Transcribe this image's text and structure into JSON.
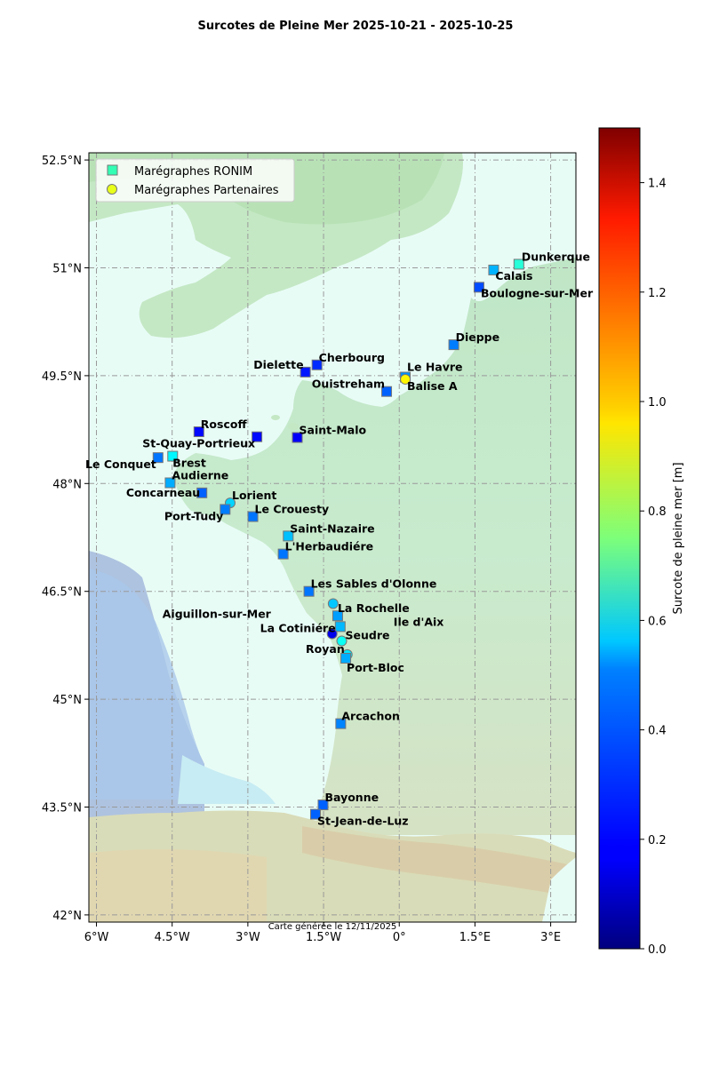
{
  "title": "Surcotes de Pleine Mer 2025-10-21 - 2025-10-25",
  "footer": "Carte générée le 12/11/2025",
  "legend": {
    "ronim_label": "Marégraphes RONIM",
    "partner_label": "Marégraphes Partenaires"
  },
  "map": {
    "lon_range": [
      -6.15,
      3.5
    ],
    "lat_range": [
      41.9,
      52.6
    ],
    "lon_ticks": [
      {
        "value": -6,
        "label": "6°W"
      },
      {
        "value": -4.5,
        "label": "4.5°W"
      },
      {
        "value": -3,
        "label": "3°W"
      },
      {
        "value": -1.5,
        "label": "1.5°W"
      },
      {
        "value": 0,
        "label": "0°"
      },
      {
        "value": 1.5,
        "label": "1.5°E"
      },
      {
        "value": 3,
        "label": "3°E"
      }
    ],
    "lat_ticks": [
      {
        "value": 52.5,
        "label": "52.5°N"
      },
      {
        "value": 51,
        "label": "51°N"
      },
      {
        "value": 49.5,
        "label": "49.5°N"
      },
      {
        "value": 48,
        "label": "48°N"
      },
      {
        "value": 46.5,
        "label": "46.5°N"
      },
      {
        "value": 45,
        "label": "45°N"
      },
      {
        "value": 43.5,
        "label": "43.5°N"
      },
      {
        "value": 42,
        "label": "42°N"
      }
    ],
    "grid": true
  },
  "colorbar": {
    "label": "Surcote de pleine mer [m]",
    "min": 0.0,
    "max": 1.5,
    "colormap": "jet",
    "ticks": [
      "0.0",
      "0.2",
      "0.4",
      "0.6",
      "0.8",
      "1.0",
      "1.2",
      "1.4"
    ]
  },
  "stations": [
    {
      "name": "Dunkerque",
      "lon": 2.37,
      "lat": 51.05,
      "type": "ronim",
      "surge": 0.62,
      "anchor": "start",
      "dx": 3,
      "dy": -4
    },
    {
      "name": "Calais",
      "lon": 1.87,
      "lat": 50.97,
      "type": "ronim",
      "surge": 0.45,
      "anchor": "start",
      "dx": 2,
      "dy": 11
    },
    {
      "name": "Boulogne-sur-Mer",
      "lon": 1.58,
      "lat": 50.73,
      "type": "ronim",
      "surge": 0.3,
      "anchor": "start",
      "dx": 2,
      "dy": 11
    },
    {
      "name": "Dieppe",
      "lon": 1.08,
      "lat": 49.93,
      "type": "ronim",
      "surge": 0.37,
      "anchor": "start",
      "dx": 2,
      "dy": -4
    },
    {
      "name": "Le Havre",
      "lon": 0.12,
      "lat": 49.48,
      "type": "ronim",
      "surge": 0.4,
      "anchor": "start",
      "dx": 2,
      "dy": -7
    },
    {
      "name": "Balise A",
      "lon": 0.12,
      "lat": 49.45,
      "type": "partner",
      "surge": 0.95,
      "anchor": "start",
      "dx": 2,
      "dy": 12
    },
    {
      "name": "Cherbourg",
      "lon": -1.63,
      "lat": 49.65,
      "type": "ronim",
      "surge": 0.25,
      "anchor": "start",
      "dx": 2,
      "dy": -4
    },
    {
      "name": "Dielette",
      "lon": -1.86,
      "lat": 49.55,
      "type": "ronim",
      "surge": 0.22,
      "anchor": "end",
      "dx": -2,
      "dy": -4
    },
    {
      "name": "Ouistreham",
      "lon": -0.25,
      "lat": 49.28,
      "type": "ronim",
      "surge": 0.33,
      "anchor": "end",
      "dx": -2,
      "dy": -4
    },
    {
      "name": "Roscoff",
      "lon": -3.97,
      "lat": 48.72,
      "type": "ronim",
      "surge": 0.2,
      "anchor": "start",
      "dx": 2,
      "dy": -4
    },
    {
      "name": "St-Quay-Portrieux",
      "lon": -2.82,
      "lat": 48.65,
      "type": "ronim",
      "surge": 0.2,
      "anchor": "end",
      "dx": -2,
      "dy": 12
    },
    {
      "name": "Saint-Malo",
      "lon": -2.02,
      "lat": 48.64,
      "type": "ronim",
      "surge": 0.18,
      "anchor": "start",
      "dx": 2,
      "dy": -4
    },
    {
      "name": "Le Conquet",
      "lon": -4.78,
      "lat": 48.36,
      "type": "ronim",
      "surge": 0.36,
      "anchor": "end",
      "dx": -2,
      "dy": 12
    },
    {
      "name": "Brest",
      "lon": -4.49,
      "lat": 48.38,
      "type": "ronim",
      "surge": 0.55,
      "anchor": "start",
      "dx": 0,
      "dy": 12
    },
    {
      "name": "Audierne",
      "lon": -4.54,
      "lat": 48.01,
      "type": "ronim",
      "surge": 0.44,
      "anchor": "start",
      "dx": 2,
      "dy": -4
    },
    {
      "name": "Concarneau",
      "lon": -3.91,
      "lat": 47.87,
      "type": "ronim",
      "surge": 0.33,
      "anchor": "end",
      "dx": -2,
      "dy": 4
    },
    {
      "name": "Lorient",
      "lon": -3.35,
      "lat": 47.73,
      "type": "partner",
      "surge": 0.5,
      "anchor": "start",
      "dx": 2,
      "dy": -4
    },
    {
      "name": "Port-Tudy",
      "lon": -3.45,
      "lat": 47.64,
      "type": "ronim",
      "surge": 0.37,
      "anchor": "end",
      "dx": -2,
      "dy": 12
    },
    {
      "name": "Le Crouesty",
      "lon": -2.9,
      "lat": 47.54,
      "type": "ronim",
      "surge": 0.36,
      "anchor": "start",
      "dx": 2,
      "dy": -4
    },
    {
      "name": "Saint-Nazaire",
      "lon": -2.2,
      "lat": 47.27,
      "type": "ronim",
      "surge": 0.47,
      "anchor": "start",
      "dx": 2,
      "dy": -4
    },
    {
      "name": "L'Herbaudiére",
      "lon": -2.3,
      "lat": 47.02,
      "type": "ronim",
      "surge": 0.36,
      "anchor": "start",
      "dx": 2,
      "dy": -4
    },
    {
      "name": "Les Sables d'Olonne",
      "lon": -1.79,
      "lat": 46.5,
      "type": "ronim",
      "surge": 0.36,
      "anchor": "start",
      "dx": 2,
      "dy": -4
    },
    {
      "name": "La Rochelle",
      "lon": -1.22,
      "lat": 46.16,
      "type": "ronim",
      "surge": 0.42,
      "anchor": "start",
      "dx": 0,
      "dy": -4
    },
    {
      "name": "Aiguillon-sur-Mer",
      "lon": -1.31,
      "lat": 46.33,
      "type": "partner",
      "surge": 0.48,
      "anchor": "end",
      "dx": -70,
      "dy": 16
    },
    {
      "name": "Ile d'Aix",
      "lon": -1.17,
      "lat": 46.01,
      "type": "ronim",
      "surge": 0.46,
      "anchor": "start",
      "dx": 60,
      "dy": -1
    },
    {
      "name": "La Cotiniére",
      "lon": -1.33,
      "lat": 45.91,
      "type": "partner",
      "surge": 0.16,
      "anchor": "end",
      "dx": 4,
      "dy": -2
    },
    {
      "name": "Seudre",
      "lon": -1.14,
      "lat": 45.81,
      "type": "partner",
      "surge": 0.58,
      "anchor": "start",
      "dx": 4,
      "dy": -2
    },
    {
      "name": "Royan",
      "lon": -1.03,
      "lat": 45.62,
      "type": "partner",
      "surge": 0.53,
      "anchor": "end",
      "dx": -3,
      "dy": -2
    },
    {
      "name": "Port-Bloc",
      "lon": -1.06,
      "lat": 45.57,
      "type": "ronim",
      "surge": 0.44,
      "anchor": "start",
      "dx": 1,
      "dy": 15
    },
    {
      "name": "Arcachon",
      "lon": -1.16,
      "lat": 44.66,
      "type": "ronim",
      "surge": 0.38,
      "anchor": "start",
      "dx": 1,
      "dy": -4
    },
    {
      "name": "Bayonne",
      "lon": -1.51,
      "lat": 43.53,
      "type": "ronim",
      "surge": 0.33,
      "anchor": "start",
      "dx": 2,
      "dy": -4
    },
    {
      "name": "St-Jean-de-Luz",
      "lon": -1.66,
      "lat": 43.4,
      "type": "ronim",
      "surge": 0.33,
      "anchor": "start",
      "dx": 2,
      "dy": 12
    }
  ]
}
